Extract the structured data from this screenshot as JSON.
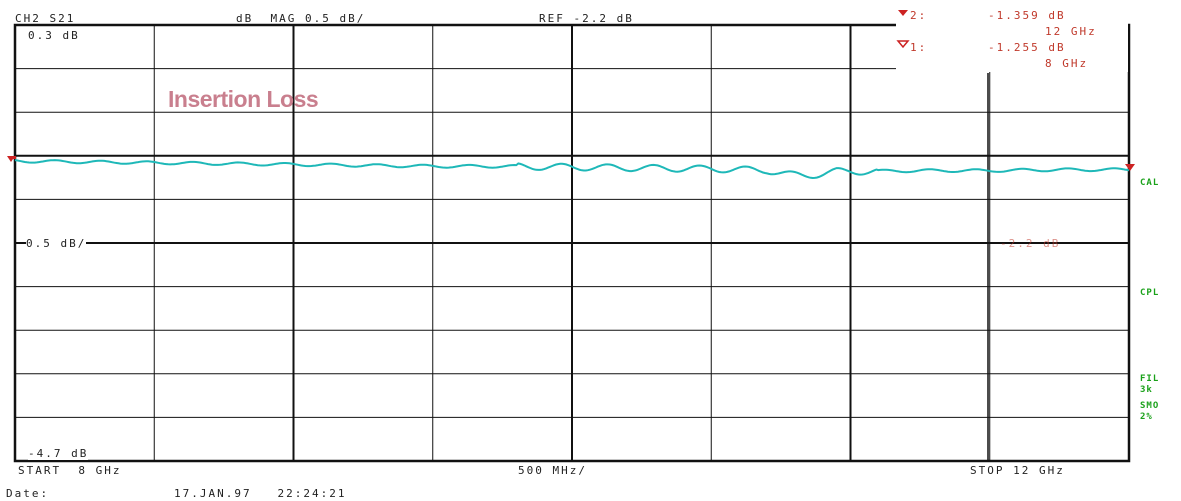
{
  "header": {
    "channel": "CH2 S21",
    "format": "dB  MAG 0.5 dB/",
    "reference": "REF -2.2 dB"
  },
  "markers": [
    {
      "id": "2:",
      "value": "-1.359 dB",
      "freq": "12 GHz"
    },
    {
      "id": "1:",
      "value": "-1.255 dB",
      "freq": "8 GHz"
    }
  ],
  "annotation": "Insertion Loss",
  "scale_labels": {
    "top": "0.3 dB",
    "mid": "0.5 dB/",
    "ref_right": "-2.2 dB",
    "bottom": "-4.7 dB"
  },
  "side_labels": [
    "CAL",
    "CPL",
    "FIL",
    "3k",
    "SMO",
    "2%"
  ],
  "footer": {
    "start": "START  8 GHz",
    "span": "500 MHz/",
    "stop": "STOP 12 GHz",
    "date_label": "Date:",
    "date_value": "17.JAN.97   22:24:21"
  },
  "colors": {
    "trace": "#1eb8b8",
    "grid": "#111111",
    "marker": "#cc2222",
    "annotation": "#c97f8e",
    "status": "#1aa11a"
  },
  "chart_data": {
    "type": "line",
    "xlabel": "",
    "ylabel": "",
    "xlim": [
      8,
      12
    ],
    "ylim": [
      -4.7,
      0.3
    ],
    "reference_level": -2.2,
    "series": [
      {
        "x": [
          8.0,
          8.25,
          8.5,
          8.75,
          9.0,
          9.25,
          9.5,
          9.75,
          10.0,
          10.25,
          10.5,
          10.75,
          11.0,
          11.25,
          11.5,
          11.75,
          12.0
        ],
        "values": [
          -1.26,
          -1.27,
          -1.28,
          -1.29,
          -1.3,
          -1.31,
          -1.32,
          -1.32,
          -1.33,
          -1.34,
          -1.35,
          -1.37,
          -1.38,
          -1.37,
          -1.37,
          -1.36,
          -1.359
        ]
      }
    ]
  }
}
